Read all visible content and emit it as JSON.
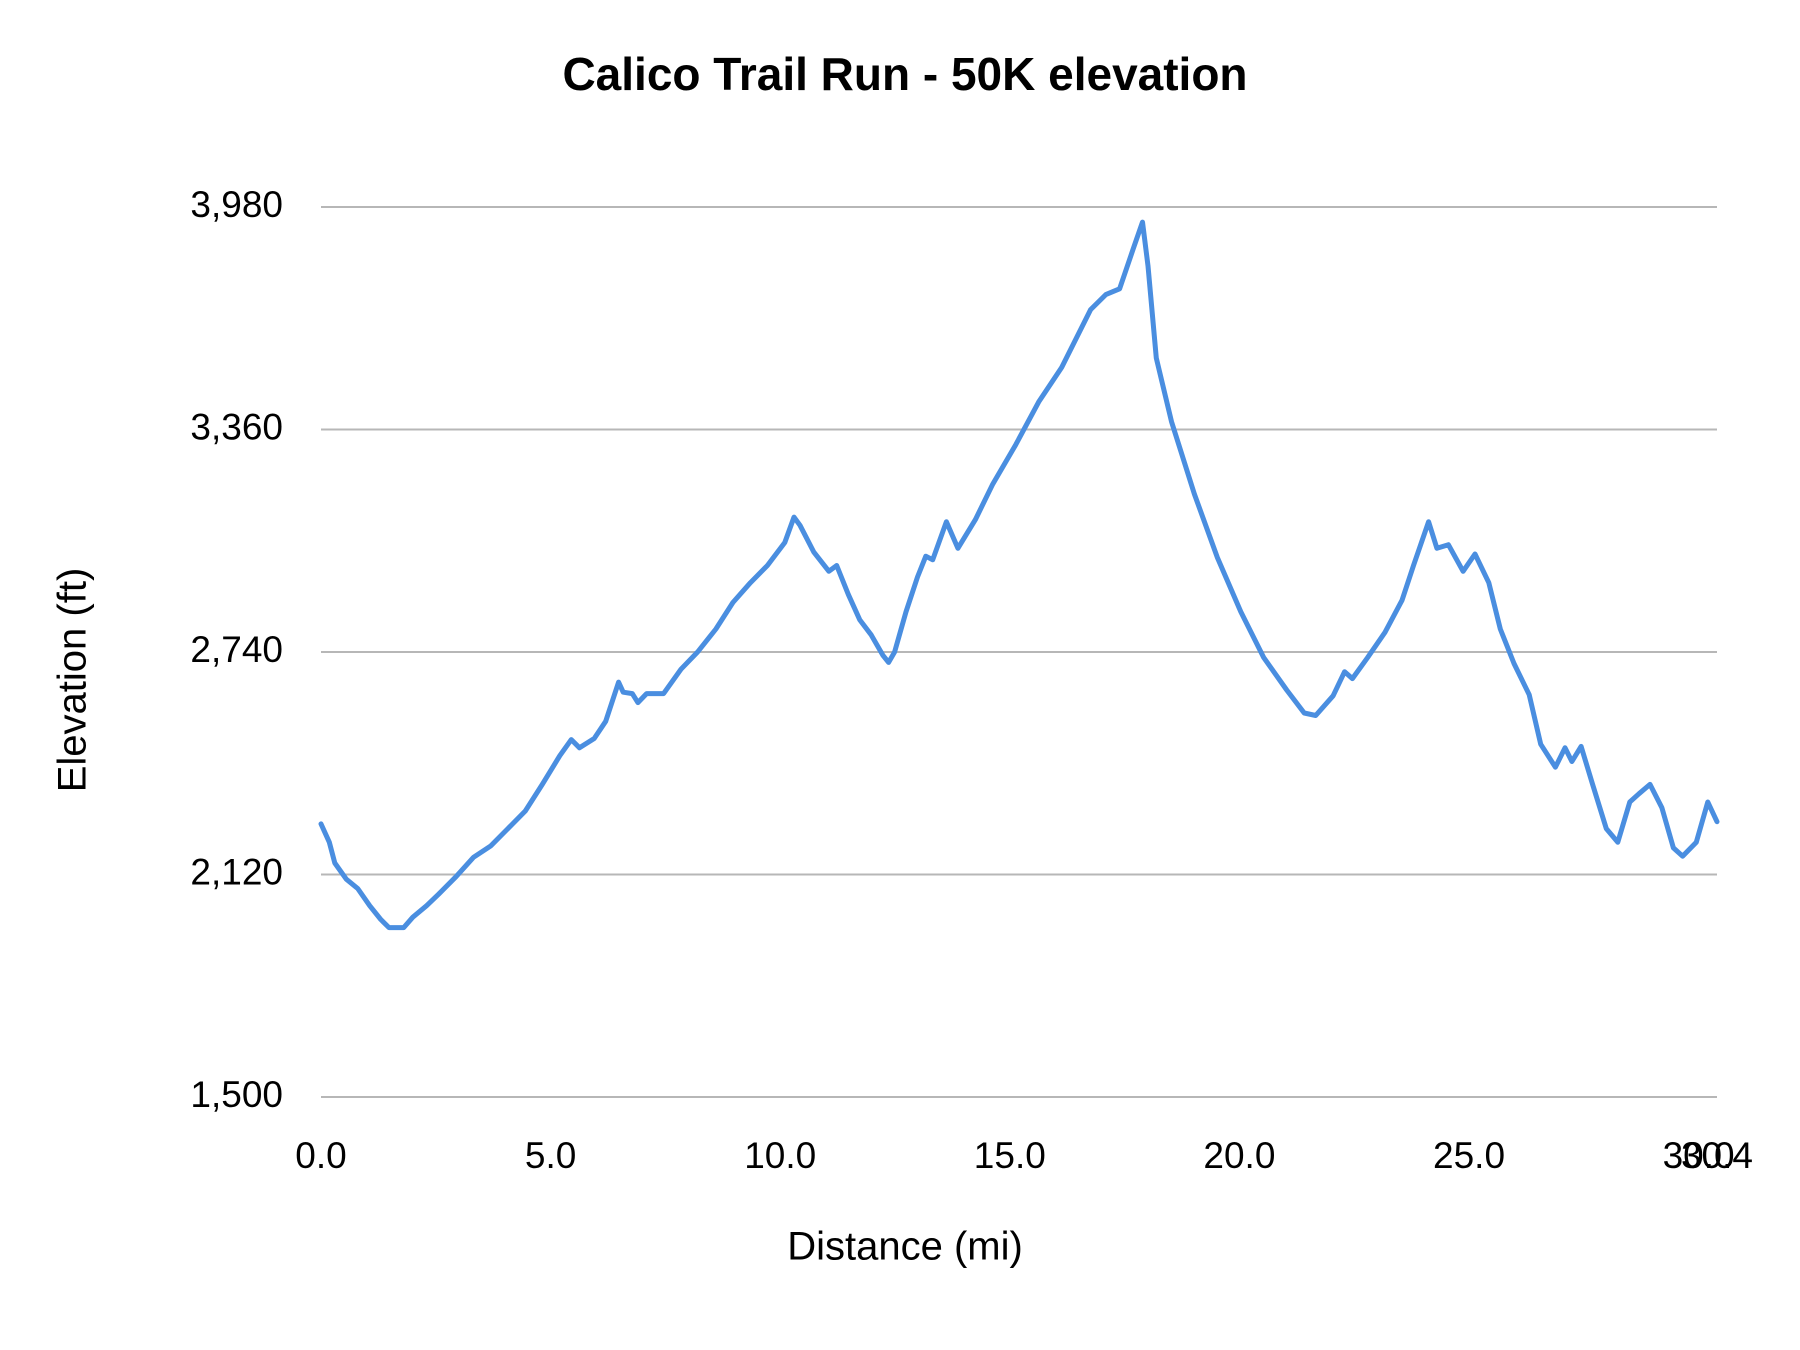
{
  "chart_data": {
    "type": "line",
    "title": "Calico Trail Run - 50K elevation",
    "x_label": "Distance (mi)",
    "y_label": "Elevation (ft)",
    "color": "#4a8ee0",
    "grid": true,
    "xlim": [
      0,
      30.4
    ],
    "ylim": [
      1500,
      3980
    ],
    "xticks": [
      {
        "value": 0,
        "label": "0.0"
      },
      {
        "value": 5,
        "label": "5.0"
      },
      {
        "value": 10,
        "label": "10.0"
      },
      {
        "value": 15,
        "label": "15.0"
      },
      {
        "value": 20,
        "label": "20.0"
      },
      {
        "value": 25,
        "label": "25.0"
      },
      {
        "value": 30,
        "label": "30.0"
      },
      {
        "value": 30.4,
        "label": "30.4"
      }
    ],
    "yticks": [
      {
        "value": 1500,
        "label": "1,500"
      },
      {
        "value": 2120,
        "label": "2,120"
      },
      {
        "value": 2740,
        "label": "2,740"
      },
      {
        "value": 3360,
        "label": "3,360"
      },
      {
        "value": 3980,
        "label": "3,980"
      }
    ],
    "x": [
      0,
      0.18,
      0.3,
      0.55,
      0.8,
      1.06,
      1.3,
      1.48,
      1.8,
      2.0,
      2.3,
      2.56,
      2.94,
      3.32,
      3.7,
      4.07,
      4.45,
      4.82,
      5.2,
      5.45,
      5.63,
      5.95,
      6.2,
      6.48,
      6.58,
      6.78,
      6.9,
      7.09,
      7.46,
      7.84,
      8.2,
      8.6,
      8.97,
      9.35,
      9.72,
      10.1,
      10.3,
      10.43,
      10.73,
      11.06,
      11.23,
      11.48,
      11.73,
      11.98,
      12.24,
      12.36,
      12.49,
      12.74,
      12.99,
      13.17,
      13.32,
      13.62,
      13.87,
      14.25,
      14.62,
      15.13,
      15.63,
      16.13,
      16.76,
      17.09,
      17.39,
      17.69,
      17.89,
      18.01,
      18.19,
      18.52,
      19.02,
      19.52,
      20.03,
      20.53,
      21.03,
      21.41,
      21.66,
      22.04,
      22.29,
      22.46,
      22.79,
      23.17,
      23.54,
      23.79,
      24.12,
      24.3,
      24.55,
      24.87,
      25.13,
      25.43,
      25.68,
      25.98,
      26.31,
      26.56,
      26.88,
      27.09,
      27.24,
      27.44,
      27.69,
      27.99,
      28.24,
      28.5,
      28.7,
      28.94,
      29.2,
      29.45,
      29.65,
      29.95,
      30.2,
      30.4
    ],
    "values": [
      2261,
      2210,
      2152,
      2107,
      2081,
      2033,
      1995,
      1972,
      1972,
      2001,
      2033,
      2065,
      2114,
      2168,
      2200,
      2248,
      2297,
      2371,
      2451,
      2496,
      2473,
      2499,
      2547,
      2656,
      2628,
      2624,
      2599,
      2624,
      2624,
      2692,
      2740,
      2804,
      2878,
      2933,
      2981,
      3045,
      3116,
      3093,
      3019,
      2965,
      2981,
      2901,
      2830,
      2788,
      2730,
      2711,
      2740,
      2852,
      2949,
      3007,
      2997,
      3103,
      3029,
      3109,
      3206,
      3318,
      3437,
      3533,
      3694,
      3736,
      3752,
      3864,
      3938,
      3816,
      3559,
      3382,
      3180,
      3003,
      2852,
      2724,
      2634,
      2570,
      2563,
      2618,
      2685,
      2666,
      2724,
      2795,
      2884,
      2981,
      3103,
      3029,
      3039,
      2965,
      3013,
      2933,
      2804,
      2708,
      2621,
      2483,
      2419,
      2473,
      2435,
      2477,
      2371,
      2248,
      2210,
      2322,
      2345,
      2371,
      2306,
      2194,
      2171,
      2210,
      2322,
      2267
    ]
  }
}
